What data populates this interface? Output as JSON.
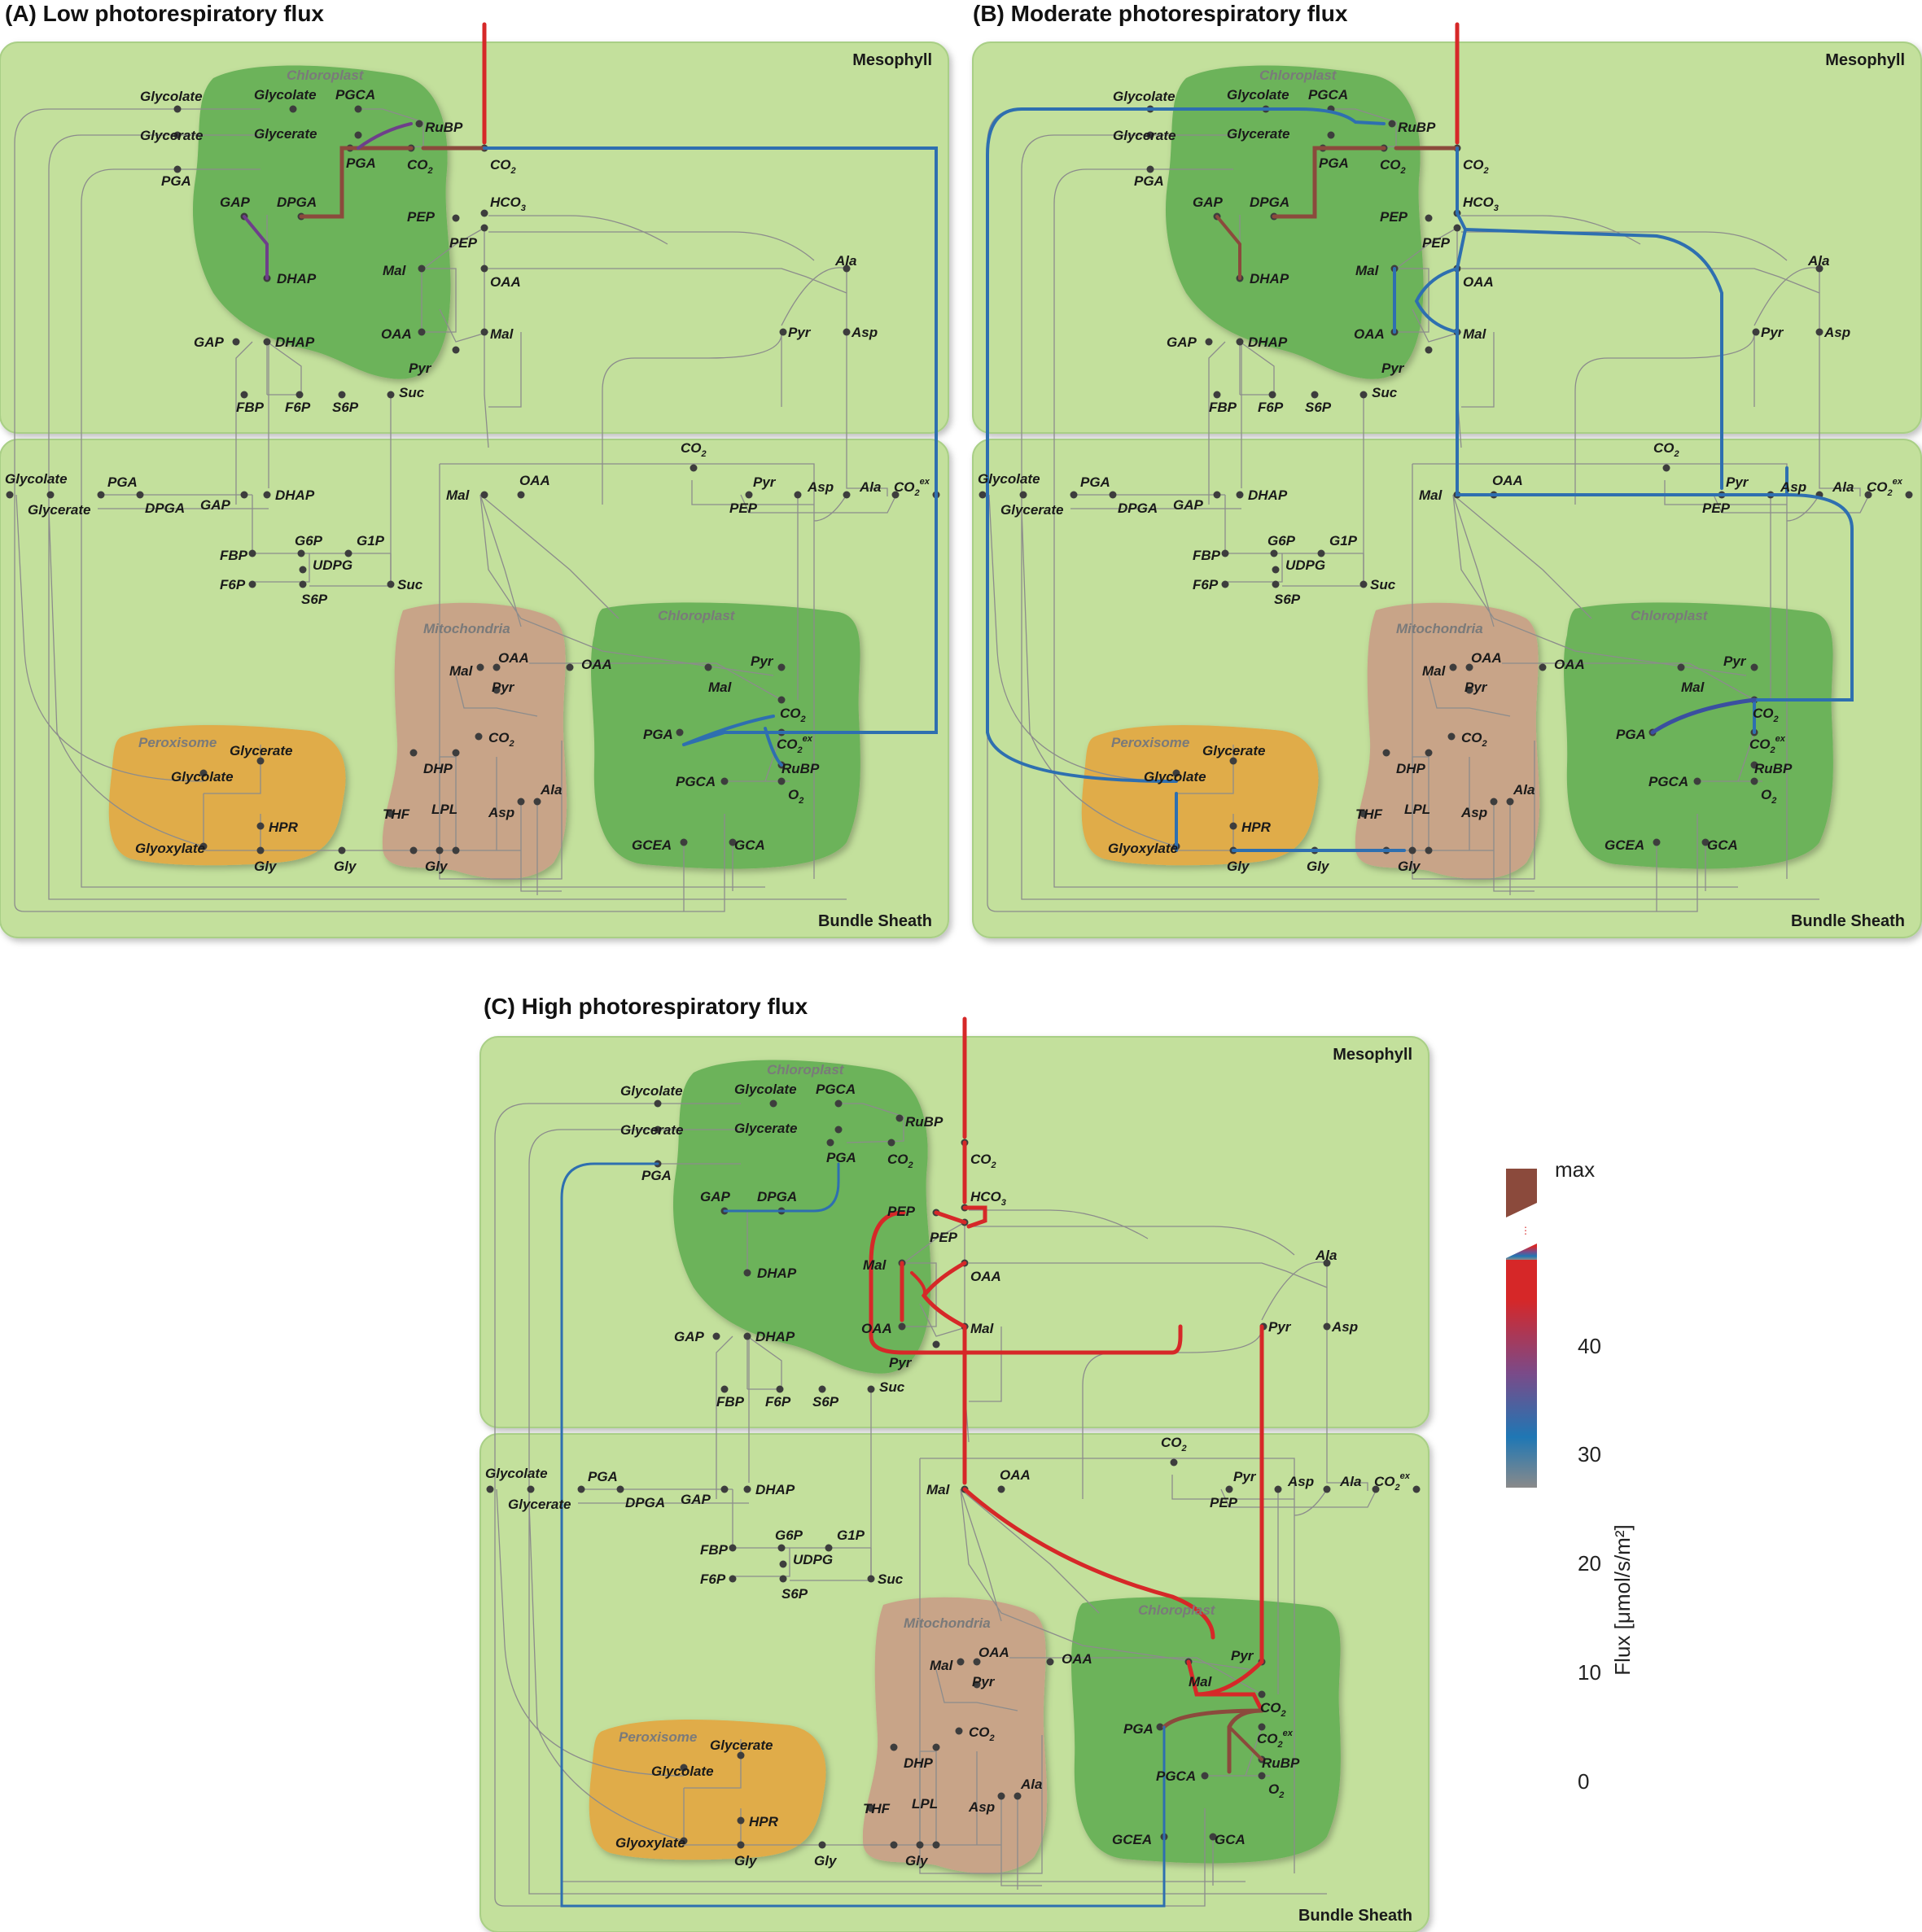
{
  "panels": [
    {
      "id": "A",
      "title": "(A) Low photorespiratory flux"
    },
    {
      "id": "B",
      "title": "(B) Moderate photorespiratory flux"
    },
    {
      "id": "C",
      "title": "(C) High photorespiratory flux"
    }
  ],
  "cells": {
    "mesophyll": "Mesophyll",
    "bundle_sheath": "Bundle Sheath"
  },
  "compartments": {
    "chloroplast": "Chloroplast",
    "mitochondria": "Mitochondria",
    "peroxisome": "Peroxisome"
  },
  "metabolites": {
    "glycolate": "Glycolate",
    "glycerate": "Glycerate",
    "pgca": "PGCA",
    "rubp": "RuBP",
    "pga": "PGA",
    "co2": "CO2",
    "co2ex": "CO2ex",
    "hco3": "HCO3",
    "gap": "GAP",
    "dpga": "DPGA",
    "dhap": "DHAP",
    "pep": "PEP",
    "mal": "Mal",
    "oaa": "OAA",
    "pyr": "Pyr",
    "ala": "Ala",
    "asp": "Asp",
    "fbp": "FBP",
    "f6p": "F6P",
    "s6p": "S6P",
    "suc": "Suc",
    "g6p": "G6P",
    "g1p": "G1P",
    "udpg": "UDPG",
    "o2": "O2",
    "gcea": "GCEA",
    "gca": "GCA",
    "thf": "THF",
    "lpl": "LPL",
    "dhp": "DHP",
    "hpr": "HPR",
    "glyoxylate": "Glyoxylate",
    "gly": "Gly"
  },
  "legend": {
    "title": "Flux [μmol/s/m²]",
    "max_label": "max",
    "ticks": [
      "0",
      "10",
      "20",
      "30",
      "40"
    ],
    "colors": {
      "low": "#8a8a8a",
      "blue": "#1f77b4",
      "purple": "#7b3f8a",
      "red": "#d62728",
      "max": "#8b4a3c"
    }
  },
  "colors": {
    "cell_fill": "#c5e1a0",
    "chloroplast": "#6db55a",
    "mitochondria": "#c9a386",
    "peroxisome": "#e1ac46",
    "line_gray": "#8c8c8c",
    "flux_blue": "#2e6fb0",
    "flux_red": "#d62828",
    "flux_brown": "#8b4a3c"
  }
}
